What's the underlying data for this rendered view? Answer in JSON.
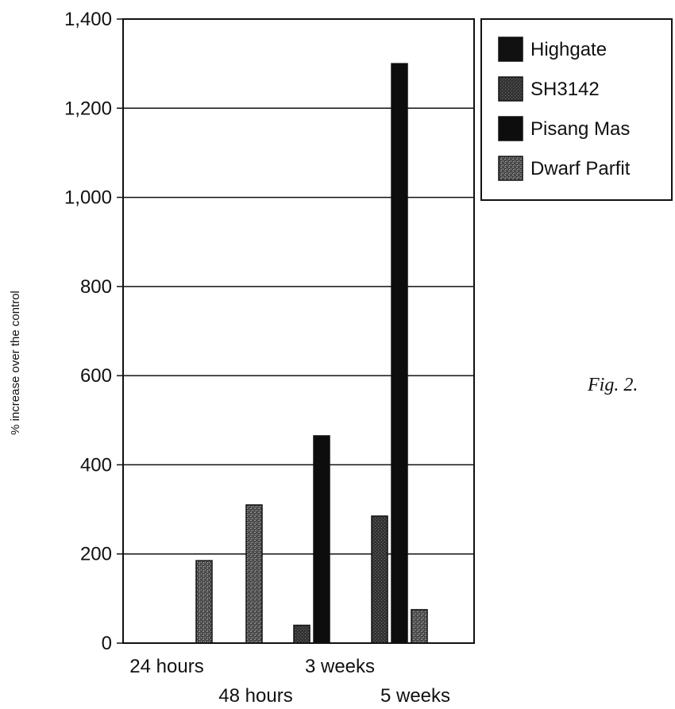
{
  "chart_data": {
    "type": "bar",
    "title": "",
    "xlabel": "",
    "ylabel": "% increase over the control",
    "ylim": [
      0,
      1400
    ],
    "yticks": [
      0,
      200,
      400,
      600,
      800,
      1000,
      1200,
      1400
    ],
    "ytick_labels": [
      "0",
      "200",
      "400",
      "600",
      "800",
      "1,000",
      "1,200",
      "1,400"
    ],
    "grid": true,
    "legend_position": "right",
    "categories": [
      "24 hours",
      "48 hours",
      "3 weeks",
      "5 weeks"
    ],
    "series": [
      {
        "name": "Highgate",
        "color": "#111111",
        "values": [
          0,
          0,
          0,
          0
        ]
      },
      {
        "name": "SH3142",
        "color": "#3a3a3a",
        "values": [
          0,
          0,
          40,
          285
        ]
      },
      {
        "name": "Pisang Mas",
        "color": "#0d0d0d",
        "values": [
          0,
          0,
          465,
          1300
        ]
      },
      {
        "name": "Dwarf Parfit",
        "color": "#555555",
        "values": [
          185,
          310,
          0,
          75
        ]
      }
    ]
  },
  "caption": "Fig. 2."
}
